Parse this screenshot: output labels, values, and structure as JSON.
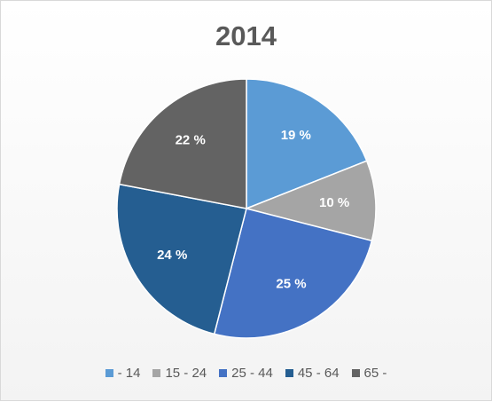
{
  "chart_data": {
    "type": "pie",
    "title": "2014",
    "categories": [
      "- 14",
      "15 - 24",
      "25 - 44",
      "45 - 64",
      "65 -"
    ],
    "values": [
      19,
      10,
      25,
      24,
      22
    ],
    "labels": [
      "19 %",
      "10 %",
      "25 %",
      "24 %",
      "22 %"
    ],
    "colors": [
      "#5b9bd5",
      "#a5a5a5",
      "#4472c4",
      "#255e91",
      "#636363"
    ],
    "legend": "bottom"
  }
}
